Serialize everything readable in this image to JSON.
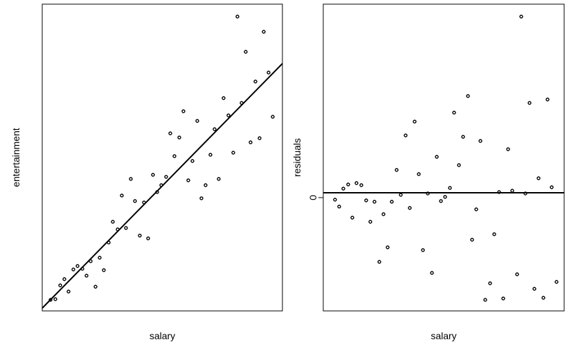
{
  "chart_data": [
    {
      "type": "scatter",
      "xlabel": "salary",
      "ylabel": "entertainment",
      "color": "#000000",
      "xlim": [
        0,
        347
      ],
      "ylim": [
        0,
        444
      ],
      "yticks": [],
      "x": [
        12,
        19,
        26,
        32,
        38,
        45,
        51,
        58,
        64,
        70,
        77,
        83,
        89,
        96,
        102,
        109,
        115,
        121,
        128,
        134,
        141,
        147,
        153,
        160,
        166,
        172,
        179,
        185,
        191,
        198,
        204,
        211,
        217,
        224,
        230,
        236,
        243,
        249,
        255,
        262,
        269,
        276,
        282,
        288,
        294,
        301,
        308,
        314,
        320,
        327,
        333
      ],
      "values": [
        16,
        17,
        37,
        46,
        28,
        60,
        65,
        61,
        51,
        72,
        35,
        77,
        59,
        99,
        129,
        118,
        167,
        120,
        191,
        159,
        109,
        157,
        105,
        197,
        172,
        182,
        194,
        257,
        224,
        251,
        289,
        189,
        217,
        275,
        163,
        182,
        226,
        263,
        191,
        308,
        283,
        229,
        426,
        301,
        375,
        244,
        332,
        250,
        404,
        345,
        281
      ],
      "line": {
        "x": [
          0,
          347
        ],
        "y": [
          4,
          358
        ]
      }
    },
    {
      "type": "scatter",
      "xlabel": "salary",
      "ylabel": "residuals",
      "color": "#000000",
      "xlim": [
        0,
        348
      ],
      "ylim": [
        -164,
        280
      ],
      "yticks": [
        0
      ],
      "x": [
        17,
        23,
        29,
        36,
        42,
        48,
        55,
        62,
        68,
        74,
        81,
        87,
        93,
        99,
        106,
        112,
        119,
        125,
        132,
        138,
        144,
        151,
        157,
        164,
        170,
        176,
        183,
        189,
        196,
        202,
        209,
        215,
        221,
        227,
        234,
        241,
        247,
        254,
        260,
        267,
        273,
        280,
        286,
        292,
        298,
        305,
        311,
        318,
        324,
        330,
        337
      ],
      "values": [
        -3,
        -13,
        13,
        19,
        -29,
        21,
        18,
        -4,
        -35,
        -6,
        -93,
        -24,
        -72,
        -6,
        40,
        4,
        90,
        -15,
        110,
        34,
        -76,
        6,
        -109,
        59,
        -5,
        1,
        14,
        123,
        47,
        88,
        147,
        -61,
        -17,
        82,
        -148,
        -124,
        -53,
        8,
        -146,
        70,
        10,
        -111,
        262,
        6,
        137,
        -132,
        28,
        -145,
        142,
        15,
        -122
      ],
      "line": {
        "x": [
          0,
          348
        ],
        "y": [
          7,
          7
        ]
      }
    }
  ]
}
